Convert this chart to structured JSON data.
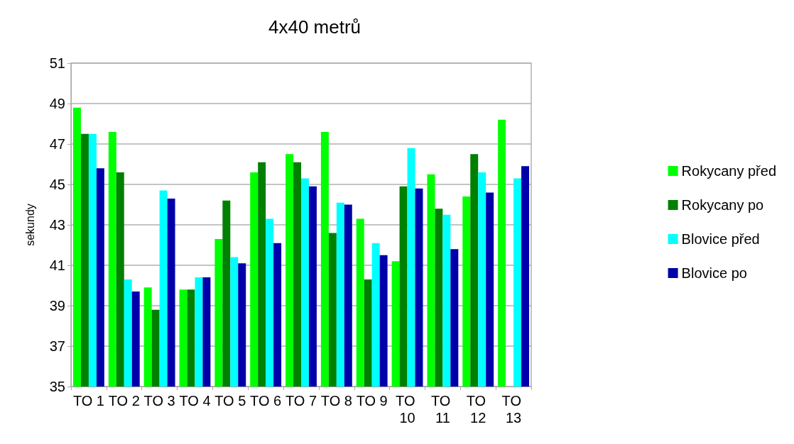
{
  "chart_data": {
    "type": "bar",
    "title": "4x40 metrů",
    "ylabel": "sekundy",
    "categories": [
      "TO 1",
      "TO 2",
      "TO 3",
      "TO 4",
      "TO 5",
      "TO 6",
      "TO 7",
      "TO 8",
      "TO 9",
      "TO 10",
      "TO 11",
      "TO 12",
      "TO 13"
    ],
    "series": [
      {
        "name": "Rokycany před",
        "color": "#00ff00",
        "values": [
          48.8,
          47.6,
          39.9,
          39.8,
          42.3,
          45.6,
          46.5,
          47.6,
          43.3,
          41.2,
          45.5,
          44.4,
          48.2
        ]
      },
      {
        "name": "Rokycany po",
        "color": "#008000",
        "values": [
          47.5,
          45.6,
          38.8,
          39.8,
          44.2,
          46.1,
          46.1,
          42.6,
          40.3,
          44.9,
          43.8,
          46.5,
          35
        ]
      },
      {
        "name": "Blovice před",
        "color": "#00ffff",
        "values": [
          47.5,
          40.3,
          44.7,
          40.4,
          41.4,
          43.3,
          45.3,
          44.1,
          42.1,
          46.8,
          43.5,
          45.6,
          45.3
        ]
      },
      {
        "name": "Blovice po",
        "color": "#0000aa",
        "values": [
          45.8,
          39.7,
          44.3,
          40.4,
          41.1,
          42.1,
          44.9,
          44.0,
          41.5,
          44.8,
          41.8,
          44.6,
          45.9
        ]
      }
    ],
    "ylim": [
      35,
      51
    ],
    "yticks": [
      35,
      37,
      39,
      41,
      43,
      45,
      47,
      49,
      51
    ],
    "grid": "y",
    "legend": "right"
  }
}
